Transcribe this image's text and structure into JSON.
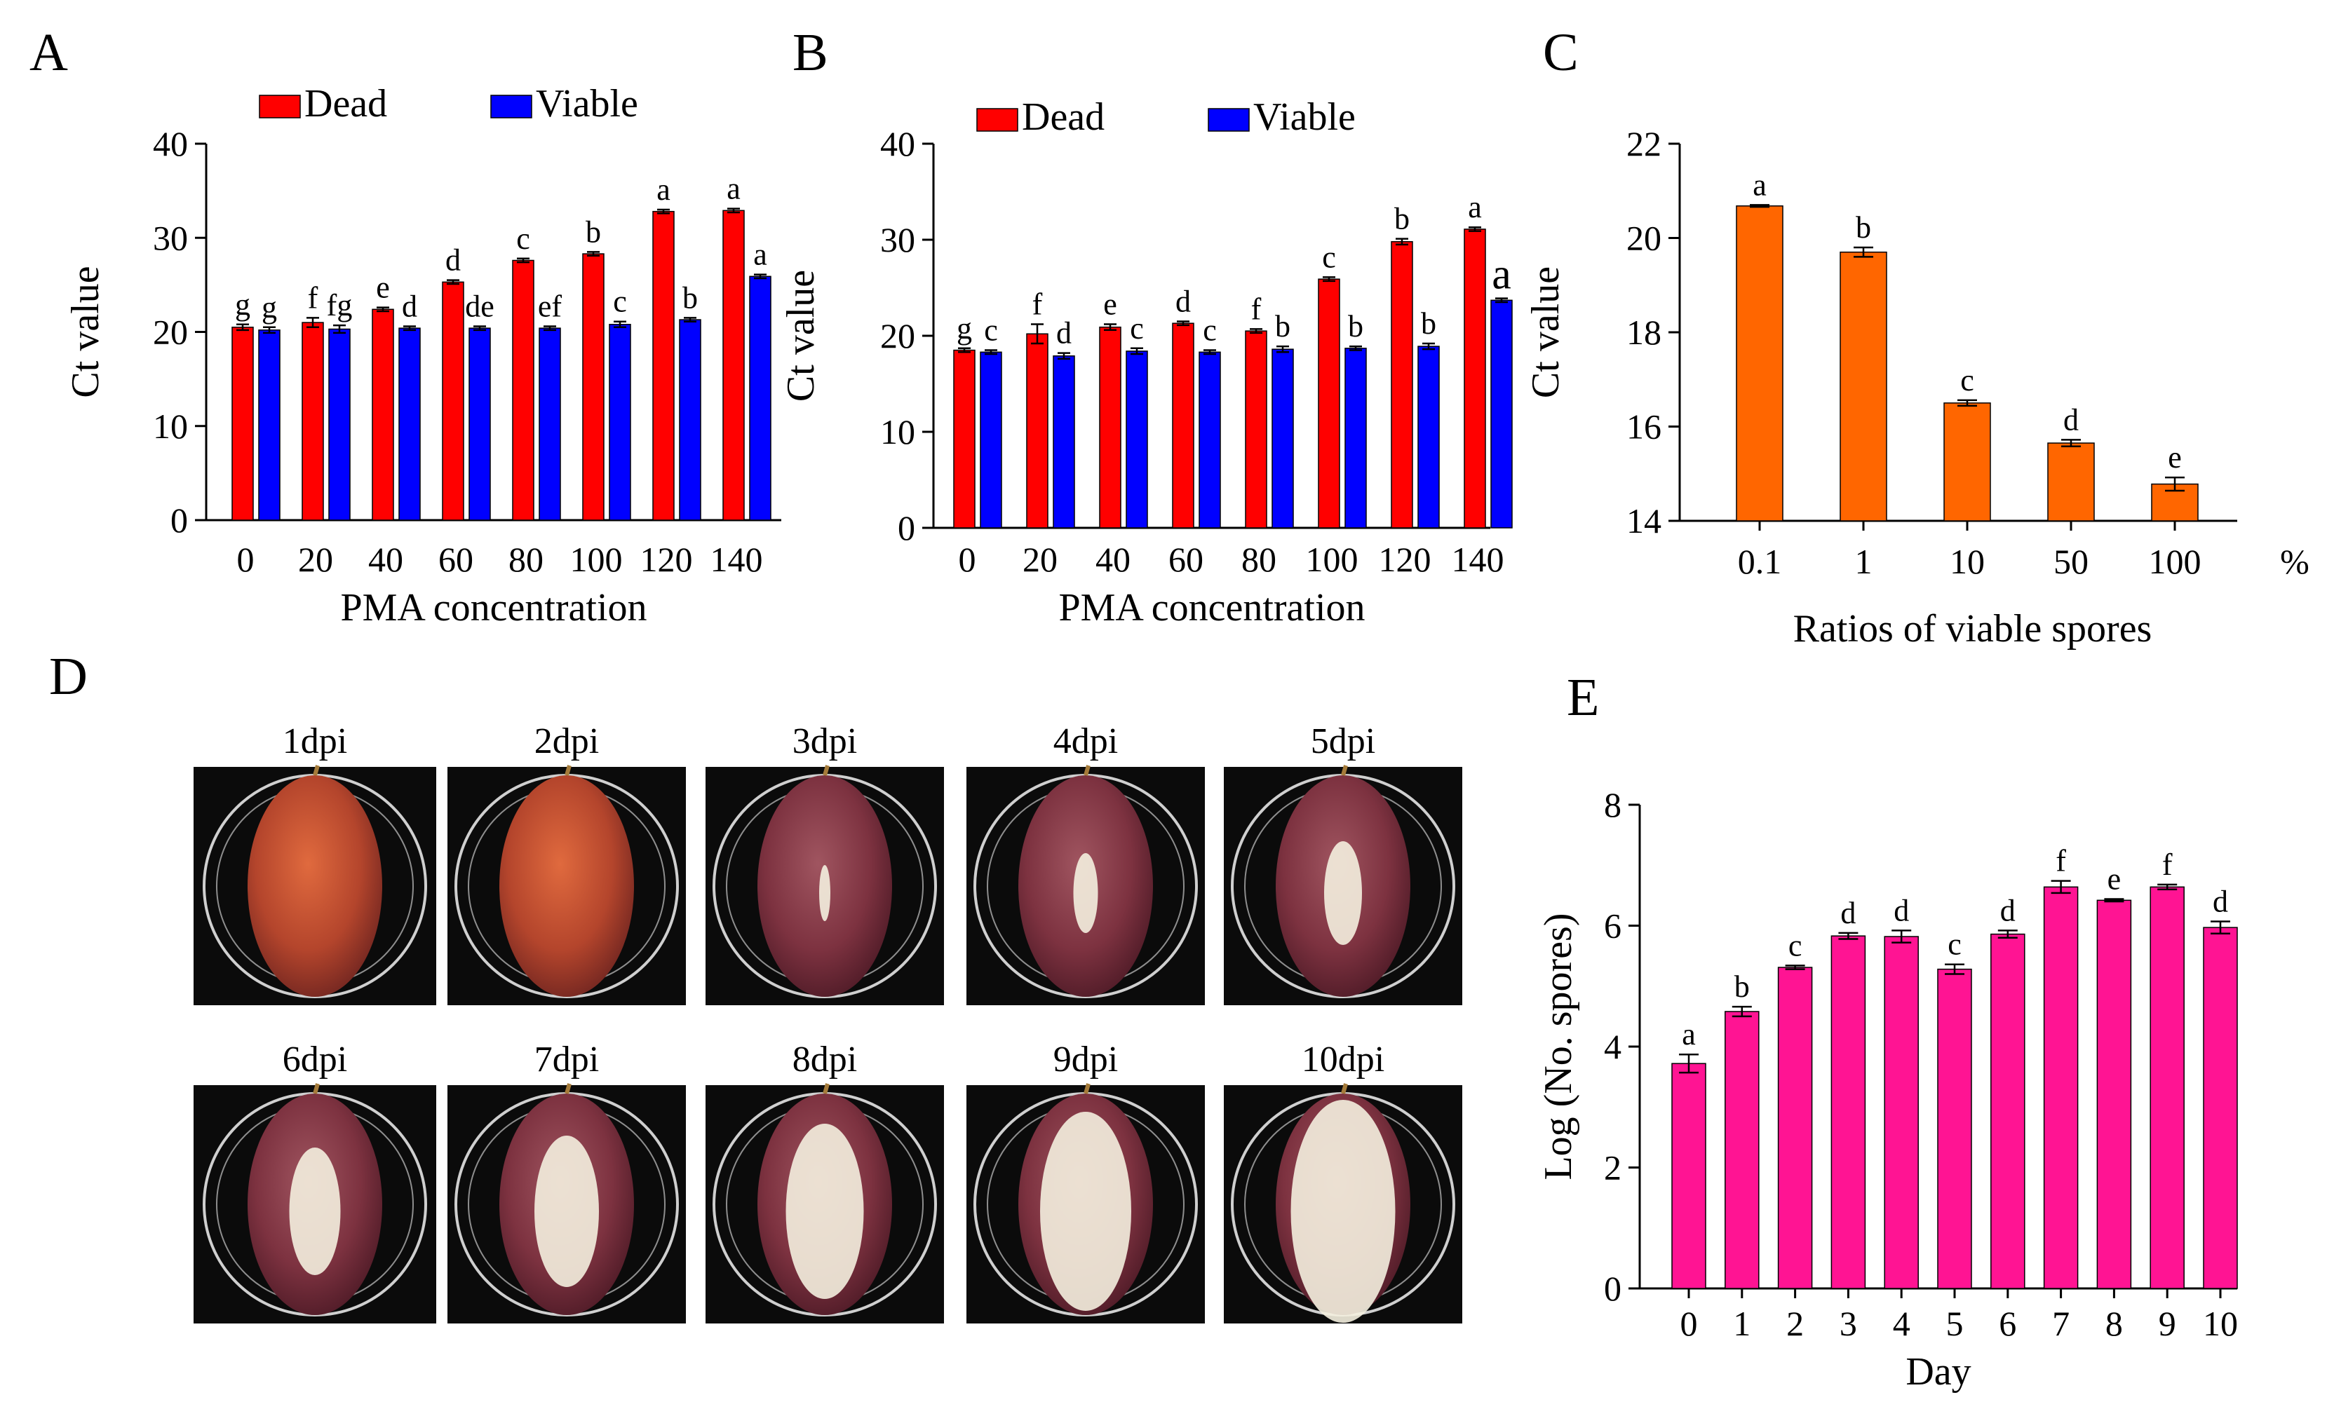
{
  "panels": [
    {
      "id": "A",
      "letter": "A",
      "chart_data": {
        "type": "bar",
        "xlabel": "PMA concentration",
        "ylabel": "Ct value",
        "ylim": [
          0,
          40
        ],
        "yticks": [
          "0",
          "10",
          "20",
          "30",
          "40"
        ],
        "categories": [
          "0",
          "20",
          "40",
          "60",
          "80",
          "100",
          "120",
          "140"
        ],
        "legend": {
          "position": "top",
          "entries": [
            "Dead",
            "Viable"
          ]
        },
        "series": [
          {
            "name": "Dead",
            "color": "#ff0000",
            "values": [
              20.5,
              21.0,
              22.4,
              25.3,
              27.6,
              28.3,
              32.8,
              32.9
            ],
            "errors": [
              0.3,
              0.5,
              0.2,
              0.2,
              0.2,
              0.2,
              0.2,
              0.2
            ],
            "labels": [
              "g",
              "f",
              "e",
              "d",
              "c",
              "b",
              "a",
              "a"
            ]
          },
          {
            "name": "Viable",
            "color": "#0000ff",
            "values": [
              20.2,
              20.3,
              20.4,
              20.4,
              20.4,
              20.8,
              21.3,
              25.9
            ],
            "errors": [
              0.3,
              0.4,
              0.2,
              0.2,
              0.2,
              0.3,
              0.2,
              0.2
            ],
            "labels": [
              "g",
              "fg",
              "d",
              "de",
              "ef",
              "c",
              "b",
              "a"
            ]
          }
        ]
      }
    },
    {
      "id": "B",
      "letter": "B",
      "chart_data": {
        "type": "bar",
        "xlabel": "PMA concentration",
        "ylabel": "Ct value",
        "ylim": [
          0,
          40
        ],
        "yticks": [
          "0",
          "10",
          "20",
          "30",
          "40"
        ],
        "categories": [
          "0",
          "20",
          "40",
          "60",
          "80",
          "100",
          "120",
          "140"
        ],
        "legend": {
          "position": "top",
          "entries": [
            "Dead",
            "Viable"
          ]
        },
        "series": [
          {
            "name": "Dead",
            "color": "#ff0000",
            "values": [
              18.5,
              20.2,
              20.9,
              21.3,
              20.5,
              25.9,
              29.8,
              31.1
            ],
            "errors": [
              0.2,
              1.0,
              0.3,
              0.2,
              0.2,
              0.2,
              0.3,
              0.2
            ],
            "labels": [
              "g",
              "f",
              "e",
              "d",
              "f",
              "c",
              "b",
              "a"
            ]
          },
          {
            "name": "Viable",
            "color": "#0000ff",
            "values": [
              18.3,
              17.9,
              18.4,
              18.3,
              18.6,
              18.7,
              18.9,
              23.7
            ],
            "errors": [
              0.2,
              0.3,
              0.3,
              0.2,
              0.3,
              0.2,
              0.3,
              0.2
            ],
            "labels": [
              "c",
              "d",
              "c",
              "c",
              "b",
              "b",
              "b",
              "a"
            ]
          }
        ]
      }
    },
    {
      "id": "C",
      "letter": "C",
      "unit": "%",
      "chart_data": {
        "type": "bar",
        "xlabel": "Ratios of viable spores",
        "ylabel": "Ct value",
        "ylim": [
          14,
          22
        ],
        "yticks": [
          "14",
          "16",
          "18",
          "20",
          "22"
        ],
        "categories": [
          "0.1",
          "1",
          "10",
          "50",
          "100"
        ],
        "series": [
          {
            "name": "Ct value",
            "color": "#ff6600",
            "values": [
              20.68,
              19.7,
              16.5,
              15.65,
              14.78
            ],
            "errors": [
              0.02,
              0.1,
              0.06,
              0.07,
              0.14
            ],
            "labels": [
              "a",
              "b",
              "c",
              "d",
              "e"
            ]
          }
        ]
      }
    },
    {
      "id": "E",
      "letter": "E",
      "chart_data": {
        "type": "bar",
        "xlabel": "Day",
        "ylabel": "Log (No. spores)",
        "ylim": [
          0,
          8
        ],
        "yticks": [
          "0",
          "2",
          "4",
          "6",
          "8"
        ],
        "categories": [
          "0",
          "1",
          "2",
          "3",
          "4",
          "5",
          "6",
          "7",
          "8",
          "9",
          "10"
        ],
        "series": [
          {
            "name": "Log (No. spores)",
            "color": "#ff1493",
            "values": [
              3.72,
              4.58,
              5.31,
              5.83,
              5.82,
              5.28,
              5.86,
              6.64,
              6.42,
              6.64,
              5.97
            ],
            "errors": [
              0.15,
              0.08,
              0.03,
              0.05,
              0.1,
              0.08,
              0.06,
              0.1,
              0.02,
              0.04,
              0.1
            ],
            "labels": [
              "a",
              "b",
              "c",
              "d",
              "d",
              "c",
              "d",
              "f",
              "e",
              "f",
              "d"
            ]
          }
        ]
      }
    }
  ],
  "photos": {
    "letter": "D",
    "items": [
      {
        "label": "1dpi",
        "stage": 1
      },
      {
        "label": "2dpi",
        "stage": 2
      },
      {
        "label": "3dpi",
        "stage": 3
      },
      {
        "label": "4dpi",
        "stage": 4
      },
      {
        "label": "5dpi",
        "stage": 5
      },
      {
        "label": "6dpi",
        "stage": 6
      },
      {
        "label": "7dpi",
        "stage": 7
      },
      {
        "label": "8dpi",
        "stage": 8
      },
      {
        "label": "9dpi",
        "stage": 9
      },
      {
        "label": "10dpi",
        "stage": 10
      }
    ]
  }
}
